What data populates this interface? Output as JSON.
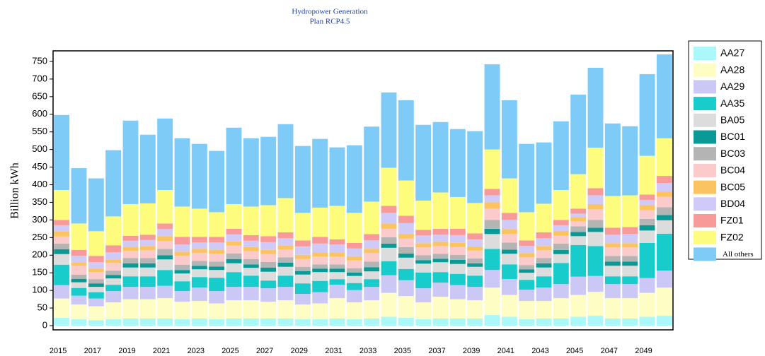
{
  "chart_data": {
    "type": "stacked_bar",
    "title": "Hydropower Generation",
    "subtitle": "Plan RCP4.5",
    "y_label": "Billion kWh",
    "categories": [
      "2015",
      null,
      "2017",
      null,
      "2019",
      null,
      "2021",
      null,
      "2023",
      null,
      "2025",
      null,
      "2027",
      null,
      "2029",
      null,
      "2031",
      null,
      "2033",
      null,
      "2035",
      null,
      "2037",
      null,
      "2039",
      null,
      "2041",
      null,
      "2043",
      null,
      "2045",
      null,
      "2047",
      null,
      "2049",
      null
    ],
    "ylim": [
      -12,
      780
    ],
    "yticks": [
      0,
      50,
      100,
      150,
      200,
      250,
      300,
      350,
      400,
      450,
      500,
      550,
      600,
      650,
      700,
      750
    ],
    "series": [
      {
        "name": "AA27",
        "color": "#aaf8fa",
        "values": [
          22,
          18,
          15,
          18,
          20,
          20,
          20,
          18,
          20,
          18,
          20,
          20,
          20,
          20,
          18,
          18,
          20,
          18,
          20,
          25,
          22,
          18,
          20,
          20,
          20,
          30,
          25,
          18,
          20,
          20,
          25,
          28,
          20,
          20,
          25,
          28
        ]
      },
      {
        "name": "AA28",
        "color": "#fdfdc4",
        "values": [
          55,
          42,
          40,
          48,
          55,
          55,
          58,
          50,
          50,
          45,
          52,
          52,
          48,
          52,
          42,
          45,
          58,
          48,
          52,
          68,
          62,
          48,
          62,
          55,
          52,
          78,
          62,
          52,
          50,
          58,
          62,
          68,
          58,
          58,
          68,
          80
        ]
      },
      {
        "name": "AA29",
        "color": "#ccc8f5",
        "values": [
          38,
          25,
          22,
          32,
          35,
          35,
          35,
          30,
          38,
          35,
          38,
          38,
          38,
          38,
          30,
          32,
          38,
          35,
          38,
          50,
          45,
          40,
          40,
          40,
          38,
          50,
          45,
          32,
          38,
          40,
          52,
          45,
          40,
          40,
          42,
          48
        ]
      },
      {
        "name": "AA35",
        "color": "#19cccc",
        "values": [
          58,
          22,
          18,
          18,
          30,
          30,
          45,
          28,
          30,
          38,
          42,
          32,
          22,
          32,
          30,
          32,
          16,
          20,
          22,
          40,
          32,
          45,
          30,
          32,
          32,
          60,
          42,
          28,
          32,
          60,
          90,
          85,
          22,
          22,
          100,
          105
        ]
      },
      {
        "name": "BA05",
        "color": "#dcdcdc",
        "values": [
          30,
          16,
          15,
          18,
          25,
          25,
          30,
          22,
          22,
          22,
          25,
          22,
          25,
          25,
          25,
          25,
          20,
          20,
          22,
          38,
          32,
          25,
          28,
          28,
          25,
          42,
          30,
          20,
          25,
          25,
          25,
          40,
          30,
          30,
          35,
          38
        ]
      },
      {
        "name": "BC01",
        "color": "#0a9a96",
        "values": [
          14,
          10,
          10,
          10,
          12,
          12,
          12,
          10,
          10,
          10,
          12,
          10,
          12,
          12,
          10,
          10,
          10,
          10,
          12,
          12,
          12,
          10,
          10,
          12,
          10,
          15,
          12,
          10,
          12,
          12,
          12,
          12,
          12,
          12,
          15,
          15
        ]
      },
      {
        "name": "BC03",
        "color": "#b4b4b4",
        "values": [
          16,
          12,
          12,
          12,
          15,
          15,
          18,
          15,
          14,
          14,
          16,
          15,
          16,
          15,
          12,
          12,
          12,
          12,
          16,
          18,
          18,
          14,
          14,
          14,
          14,
          25,
          20,
          12,
          15,
          18,
          16,
          22,
          16,
          16,
          18,
          22
        ]
      },
      {
        "name": "BC04",
        "color": "#fbcaca",
        "values": [
          20,
          25,
          20,
          22,
          20,
          22,
          22,
          25,
          22,
          22,
          22,
          22,
          22,
          22,
          22,
          22,
          22,
          22,
          24,
          24,
          24,
          22,
          22,
          22,
          22,
          32,
          24,
          22,
          22,
          22,
          14,
          30,
          24,
          24,
          25,
          30
        ]
      },
      {
        "name": "BC05",
        "color": "#fcc460",
        "values": [
          14,
          10,
          10,
          10,
          12,
          12,
          14,
          12,
          12,
          12,
          12,
          12,
          12,
          12,
          12,
          12,
          12,
          12,
          12,
          15,
          14,
          12,
          12,
          12,
          12,
          18,
          14,
          12,
          12,
          14,
          12,
          15,
          12,
          12,
          14,
          14
        ]
      },
      {
        "name": "BD04",
        "color": "#cfcaf7",
        "values": [
          18,
          18,
          18,
          20,
          17,
          17,
          20,
          20,
          18,
          20,
          20,
          18,
          22,
          20,
          24,
          25,
          22,
          22,
          24,
          30,
          30,
          22,
          20,
          22,
          20,
          20,
          26,
          20,
          22,
          16,
          10,
          25,
          24,
          26,
          15,
          25
        ]
      },
      {
        "name": "FZ01",
        "color": "#f99a9a",
        "values": [
          15,
          17,
          18,
          20,
          14,
          15,
          16,
          22,
          16,
          16,
          16,
          16,
          17,
          17,
          17,
          19,
          15,
          16,
          18,
          20,
          21,
          16,
          17,
          18,
          17,
          18,
          20,
          16,
          17,
          15,
          14,
          20,
          20,
          20,
          15,
          20
        ]
      },
      {
        "name": "FZ02",
        "color": "#fefc7c",
        "values": [
          85,
          75,
          70,
          82,
          90,
          89,
          95,
          86,
          80,
          70,
          70,
          81,
          88,
          97,
          78,
          83,
          95,
          85,
          92,
          108,
          100,
          83,
          103,
          90,
          86,
          112,
          98,
          80,
          81,
          85,
          98,
          115,
          90,
          90,
          110,
          107
        ]
      },
      {
        "name": "All others",
        "color": "#7fcbf8",
        "values": [
          213,
          157,
          150,
          188,
          237,
          195,
          203,
          194,
          184,
          174,
          217,
          194,
          194,
          210,
          190,
          195,
          166,
          192,
          213,
          214,
          228,
          215,
          200,
          193,
          204,
          242,
          222,
          194,
          174,
          195,
          226,
          227,
          206,
          196,
          232,
          238
        ]
      }
    ]
  }
}
